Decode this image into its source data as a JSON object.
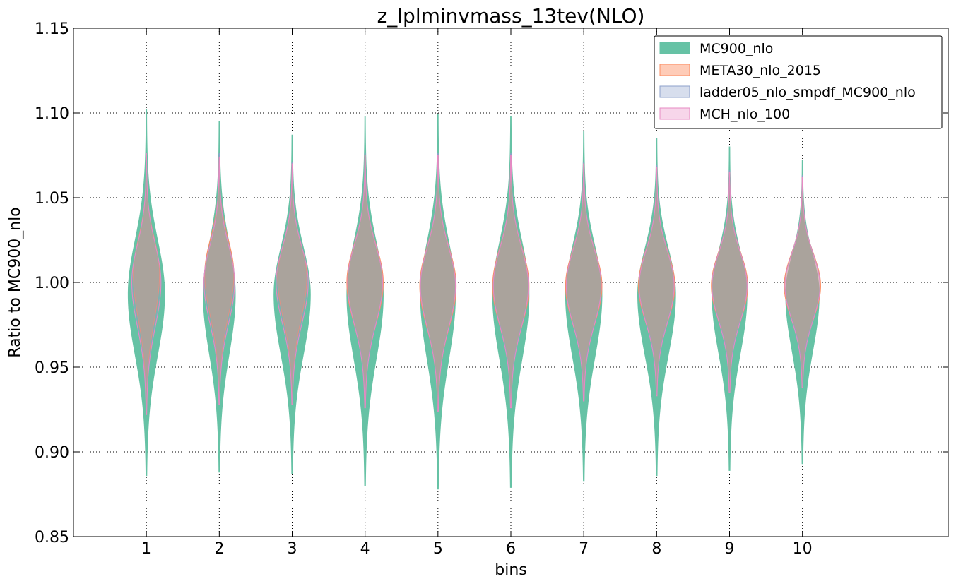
{
  "chart_data": {
    "type": "violin",
    "title": "z_lplminvmass_13tev(NLO)",
    "xlabel": "bins",
    "ylabel": "Ratio to MC900_nlo",
    "xlim": [
      0,
      12
    ],
    "ylim": [
      0.85,
      1.15
    ],
    "xticks": [
      1,
      2,
      3,
      4,
      5,
      6,
      7,
      8,
      9,
      10
    ],
    "xtick_labels": [
      "1",
      "2",
      "3",
      "4",
      "5",
      "6",
      "7",
      "8",
      "9",
      "10"
    ],
    "yticks": [
      0.85,
      0.9,
      0.95,
      1.0,
      1.05,
      1.1,
      1.15
    ],
    "ytick_labels": [
      "0.85",
      "0.90",
      "0.95",
      "1.00",
      "1.05",
      "1.10",
      "1.15"
    ],
    "grid": true,
    "legend_position": "top-right",
    "series": [
      {
        "name": "MC900_nlo",
        "fill": "#66c2a5",
        "stroke": "#66c2a5",
        "fill_opacity": 1.0,
        "y_min": [
          0.886,
          0.888,
          0.887,
          0.88,
          0.878,
          0.879,
          0.883,
          0.886,
          0.889,
          0.893
        ],
        "y_max": [
          1.102,
          1.095,
          1.087,
          1.098,
          1.099,
          1.098,
          1.089,
          1.085,
          1.08,
          1.072
        ],
        "mode": [
          0.993,
          0.993,
          0.993,
          0.993,
          0.993,
          0.993,
          0.993,
          0.993,
          0.993,
          0.993
        ],
        "max_half_width": [
          0.25,
          0.22,
          0.25,
          0.25,
          0.24,
          0.25,
          0.25,
          0.26,
          0.24,
          0.23
        ]
      },
      {
        "name": "META30_nlo_2015",
        "fill": "#fc8d62",
        "stroke": "#fc8d62",
        "fill_opacity": 0.45,
        "y_min": [
          0.925,
          0.93,
          0.93,
          0.928,
          0.925,
          0.928,
          0.932,
          0.935,
          0.937,
          0.94
        ],
        "y_max": [
          1.075,
          1.075,
          1.07,
          1.075,
          1.075,
          1.075,
          1.07,
          1.068,
          1.065,
          1.062
        ],
        "mode": [
          1.005,
          1.005,
          1.003,
          1.0,
          0.998,
          0.998,
          0.998,
          0.998,
          0.998,
          0.998
        ],
        "max_half_width": [
          0.18,
          0.2,
          0.2,
          0.25,
          0.25,
          0.25,
          0.25,
          0.25,
          0.25,
          0.25
        ]
      },
      {
        "name": "ladder05_nlo_smpdf_MC900_nlo",
        "fill": "#8da0cb",
        "stroke": "#8da0cb",
        "fill_opacity": 0.25,
        "y_min": [
          0.925,
          0.93,
          0.93,
          0.928,
          0.925,
          0.928,
          0.932,
          0.935,
          0.937,
          0.94
        ],
        "y_max": [
          1.076,
          1.076,
          1.071,
          1.076,
          1.076,
          1.076,
          1.071,
          1.069,
          1.066,
          1.063
        ],
        "mode": [
          1.0,
          1.0,
          1.0,
          1.0,
          0.998,
          0.998,
          0.998,
          0.998,
          0.998,
          0.998
        ],
        "max_half_width": [
          0.2,
          0.21,
          0.22,
          0.24,
          0.24,
          0.24,
          0.24,
          0.24,
          0.24,
          0.24
        ]
      },
      {
        "name": "MCH_nlo_100",
        "fill": "#e78ac3",
        "stroke": "#e78ac3",
        "fill_opacity": 0.12,
        "y_min": [
          0.922,
          0.928,
          0.928,
          0.926,
          0.924,
          0.926,
          0.93,
          0.933,
          0.935,
          0.938
        ],
        "y_max": [
          1.076,
          1.074,
          1.07,
          1.075,
          1.075,
          1.075,
          1.07,
          1.068,
          1.065,
          1.062
        ],
        "mode": [
          1.0,
          1.0,
          1.0,
          1.0,
          0.998,
          0.998,
          0.998,
          0.998,
          0.998,
          0.998
        ],
        "max_half_width": [
          0.2,
          0.21,
          0.22,
          0.24,
          0.24,
          0.24,
          0.24,
          0.24,
          0.24,
          0.24
        ]
      }
    ]
  }
}
